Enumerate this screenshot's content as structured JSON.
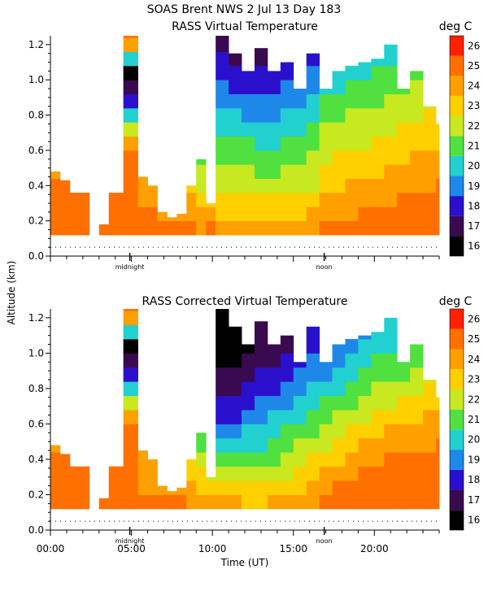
{
  "header": {
    "title": "SOAS Brent NWS    2 Jul 13 Day 183"
  },
  "y_axis_shared_label": "Altitude (km)",
  "chart_data": [
    {
      "type": "heatmap",
      "title": "RASS Virtual Temperature",
      "unit_label": "deg C",
      "ylabel": "Altitude (km)",
      "yticks": [
        "0.0",
        "0.2",
        "0.4",
        "0.6",
        "0.8",
        "1.0",
        "1.2"
      ],
      "ylim": [
        0,
        1.25
      ],
      "xlim": [
        0,
        24
      ],
      "markers": [
        {
          "label": "midnight",
          "x": 4.9
        },
        {
          "label": "noon",
          "x": 16.9
        }
      ],
      "colorbar": {
        "labels": [
          "16",
          "17",
          "18",
          "19",
          "20",
          "21",
          "22",
          "23",
          "24",
          "25",
          "26"
        ],
        "colors": [
          "#000000",
          "#3a0a50",
          "#2a10cc",
          "#1e88e8",
          "#22d0d0",
          "#50e040",
          "#c8e820",
          "#ffd000",
          "#ffa000",
          "#ff7000",
          "#ff2000"
        ]
      },
      "profiles": [
        {
          "x": 0.0,
          "top": 0.48,
          "vals": [
            25.5,
            25.5,
            25.3,
            25.0,
            24.8
          ]
        },
        {
          "x": 0.6,
          "top": 0.43,
          "vals": [
            25.5,
            25.4,
            25.2,
            25.0
          ]
        },
        {
          "x": 1.2,
          "top": 0.38,
          "vals": [
            25.5,
            25.3,
            25.0
          ]
        },
        {
          "x": 1.8,
          "top": 0.41,
          "vals": [
            25.5,
            25.3,
            25.0
          ]
        },
        {
          "x": 2.4,
          "top": 0.0,
          "vals": []
        },
        {
          "x": 3.0,
          "top": 0.18,
          "vals": [
            25.5
          ]
        },
        {
          "x": 3.6,
          "top": 0.4,
          "vals": [
            25.5,
            25.4,
            25.2
          ]
        },
        {
          "x": 4.5,
          "top": 1.25,
          "vals": [
            25.5,
            25.4,
            25.3,
            25.6,
            25.5,
            25.6,
            24.0,
            22.0,
            20.0,
            18.0,
            17.0,
            16.0,
            20.0,
            24.0,
            25.0,
            25.0
          ]
        },
        {
          "x": 5.4,
          "top": 0.45,
          "vals": [
            25.5,
            25.2,
            24.8,
            24.5,
            24.3
          ]
        },
        {
          "x": 6.0,
          "top": 0.4,
          "vals": [
            25.4,
            25.0,
            24.6,
            24.4
          ]
        },
        {
          "x": 6.6,
          "top": 0.25,
          "vals": [
            25.3,
            24.8,
            24.5
          ]
        },
        {
          "x": 7.2,
          "top": 0.22,
          "vals": [
            25.2,
            24.6
          ]
        },
        {
          "x": 7.8,
          "top": 0.24,
          "vals": [
            25.2,
            24.7
          ]
        },
        {
          "x": 8.4,
          "top": 0.4,
          "vals": [
            25.0,
            24.5,
            24.0,
            23.5
          ]
        },
        {
          "x": 9.0,
          "top": 0.55,
          "vals": [
            24.8,
            24.2,
            23.5,
            22.8,
            22.0,
            21.5
          ]
        },
        {
          "x": 9.6,
          "top": 0.3,
          "vals": [
            25.0,
            24.0,
            23.0
          ]
        },
        {
          "x": 10.2,
          "top": 1.25,
          "vals": [
            24.5,
            23.8,
            23.0,
            22.5,
            22.0,
            21.5,
            21.0,
            20.5,
            20.0,
            19.5,
            19.0,
            18.5,
            18.0,
            17.5,
            17.0,
            17.0
          ]
        },
        {
          "x": 11.0,
          "top": 1.15,
          "vals": [
            24.5,
            23.8,
            23.0,
            22.5,
            22.0,
            21.5,
            21.0,
            20.5,
            20.0,
            19.2,
            18.6,
            18.0,
            17.5,
            17.2,
            17.0
          ]
        },
        {
          "x": 11.8,
          "top": 1.05,
          "vals": [
            24.3,
            23.6,
            23.0,
            22.4,
            22.0,
            21.5,
            21.0,
            20.4,
            19.8,
            19.0,
            18.5,
            18.0,
            17.5
          ]
        },
        {
          "x": 12.6,
          "top": 1.18,
          "vals": [
            24.3,
            23.6,
            23.0,
            22.4,
            21.8,
            21.2,
            20.6,
            20.0,
            19.4,
            19.0,
            18.5,
            18.0,
            17.6,
            17.2,
            17.0
          ]
        },
        {
          "x": 13.4,
          "top": 1.05,
          "vals": [
            24.2,
            23.6,
            23.0,
            22.4,
            21.8,
            21.2,
            20.6,
            20.0,
            19.5,
            19.2,
            18.8,
            18.4,
            18.0
          ]
        },
        {
          "x": 14.2,
          "top": 1.1,
          "vals": [
            24.2,
            23.6,
            23.0,
            22.5,
            22.0,
            21.5,
            21.0,
            20.5,
            20.0,
            19.6,
            19.2,
            18.8,
            18.4,
            18.0
          ]
        },
        {
          "x": 15.0,
          "top": 0.95,
          "vals": [
            24.5,
            23.8,
            23.2,
            22.6,
            22.2,
            21.8,
            21.4,
            20.8,
            20.2,
            19.6,
            19.2,
            18.8
          ]
        },
        {
          "x": 15.8,
          "top": 1.15,
          "vals": [
            24.8,
            24.0,
            23.4,
            22.8,
            22.4,
            22.0,
            21.6,
            21.2,
            20.6,
            20.0,
            19.6,
            19.2,
            18.8,
            18.4
          ]
        },
        {
          "x": 16.6,
          "top": 0.95,
          "vals": [
            25.0,
            24.6,
            24.2,
            23.8,
            23.3,
            22.8,
            22.4,
            22.0,
            21.6,
            21.0,
            20.5,
            20.0
          ]
        },
        {
          "x": 17.4,
          "top": 1.05,
          "vals": [
            25.3,
            24.8,
            24.3,
            23.8,
            23.4,
            23.0,
            22.6,
            22.2,
            21.8,
            21.2,
            20.6,
            20.2,
            19.8
          ]
        },
        {
          "x": 18.2,
          "top": 1.08,
          "vals": [
            25.4,
            24.9,
            24.4,
            24.0,
            23.6,
            23.2,
            22.8,
            22.4,
            22.0,
            21.6,
            21.0,
            20.5,
            20.0
          ]
        },
        {
          "x": 19.0,
          "top": 1.1,
          "vals": [
            25.4,
            25.0,
            24.5,
            24.0,
            23.6,
            23.2,
            22.8,
            22.4,
            22.0,
            21.6,
            21.2,
            20.8,
            20.4,
            20.0
          ]
        },
        {
          "x": 19.8,
          "top": 1.12,
          "vals": [
            25.5,
            25.1,
            24.6,
            24.2,
            23.8,
            23.4,
            23.0,
            22.6,
            22.2,
            21.8,
            21.4,
            21.0,
            20.6,
            20.2
          ]
        },
        {
          "x": 20.6,
          "top": 1.2,
          "vals": [
            25.5,
            25.2,
            24.8,
            24.4,
            24.0,
            23.6,
            23.2,
            22.8,
            22.4,
            22.0,
            21.6,
            21.2,
            20.8,
            20.4,
            20.0
          ]
        },
        {
          "x": 21.4,
          "top": 0.95,
          "vals": [
            25.6,
            25.3,
            25.0,
            24.6,
            24.2,
            23.8,
            23.4,
            23.0,
            22.6,
            22.2,
            21.8,
            21.4
          ]
        },
        {
          "x": 22.2,
          "top": 1.05,
          "vals": [
            25.6,
            25.4,
            25.1,
            24.8,
            24.4,
            24.0,
            23.6,
            23.2,
            22.8,
            22.4,
            22.0,
            21.6,
            21.2
          ]
        },
        {
          "x": 23.0,
          "top": 0.85,
          "vals": [
            25.7,
            25.5,
            25.2,
            24.9,
            24.6,
            24.2,
            23.8,
            23.4,
            23.0,
            22.6
          ]
        },
        {
          "x": 23.8,
          "top": 0.75,
          "vals": [
            25.8,
            25.6,
            25.3,
            25.0,
            24.6,
            24.2,
            23.8,
            23.4,
            23.0
          ]
        }
      ]
    },
    {
      "type": "heatmap",
      "title": "RASS Corrected Virtual Temperature",
      "unit_label": "deg C",
      "ylabel": "Altitude (km)",
      "xlabel": "Time (UT)",
      "xticks": [
        "00:00",
        "05:00",
        "10:00",
        "15:00",
        "20:00"
      ],
      "yticks": [
        "0.0",
        "0.2",
        "0.4",
        "0.6",
        "0.8",
        "1.0",
        "1.2"
      ],
      "ylim": [
        0,
        1.25
      ],
      "xlim": [
        0,
        24
      ],
      "markers": [
        {
          "label": "midnight",
          "x": 4.9
        },
        {
          "label": "noon",
          "x": 16.9
        }
      ],
      "colorbar": {
        "labels": [
          "16",
          "17",
          "18",
          "19",
          "20",
          "21",
          "22",
          "23",
          "24",
          "25",
          "26"
        ],
        "colors": [
          "#000000",
          "#3a0a50",
          "#2a10cc",
          "#1e88e8",
          "#22d0d0",
          "#50e040",
          "#c8e820",
          "#ffd000",
          "#ffa000",
          "#ff7000",
          "#ff2000"
        ]
      },
      "profiles": [
        {
          "x": 0.0,
          "top": 0.48,
          "vals": [
            25.5,
            25.5,
            25.3,
            25.0,
            24.8
          ]
        },
        {
          "x": 0.6,
          "top": 0.43,
          "vals": [
            25.5,
            25.4,
            25.2,
            25.0
          ]
        },
        {
          "x": 1.2,
          "top": 0.38,
          "vals": [
            25.5,
            25.3,
            25.0
          ]
        },
        {
          "x": 1.8,
          "top": 0.41,
          "vals": [
            25.5,
            25.3,
            25.0
          ]
        },
        {
          "x": 2.4,
          "top": 0.0,
          "vals": []
        },
        {
          "x": 3.0,
          "top": 0.18,
          "vals": [
            25.5
          ]
        },
        {
          "x": 3.6,
          "top": 0.4,
          "vals": [
            25.5,
            25.4,
            25.2
          ]
        },
        {
          "x": 4.5,
          "top": 1.25,
          "vals": [
            25.5,
            25.4,
            25.3,
            25.6,
            25.5,
            25.6,
            24.0,
            22.0,
            20.0,
            18.0,
            17.0,
            16.0,
            20.0,
            24.0,
            25.0,
            25.0
          ]
        },
        {
          "x": 5.4,
          "top": 0.45,
          "vals": [
            25.3,
            24.9,
            24.5,
            24.2,
            24.0
          ]
        },
        {
          "x": 6.0,
          "top": 0.4,
          "vals": [
            25.2,
            24.8,
            24.4,
            24.1
          ]
        },
        {
          "x": 6.6,
          "top": 0.25,
          "vals": [
            25.1,
            24.6,
            24.2
          ]
        },
        {
          "x": 7.2,
          "top": 0.22,
          "vals": [
            25.0,
            24.4
          ]
        },
        {
          "x": 7.8,
          "top": 0.24,
          "vals": [
            25.0,
            24.5
          ]
        },
        {
          "x": 8.4,
          "top": 0.4,
          "vals": [
            24.8,
            24.2,
            23.6,
            23.0
          ]
        },
        {
          "x": 9.0,
          "top": 0.55,
          "vals": [
            24.5,
            23.8,
            23.0,
            22.2,
            21.5,
            21.0
          ]
        },
        {
          "x": 9.6,
          "top": 0.3,
          "vals": [
            24.6,
            23.6,
            22.6
          ]
        },
        {
          "x": 10.2,
          "top": 1.25,
          "vals": [
            24.0,
            23.0,
            22.0,
            21.0,
            20.0,
            19.0,
            18.5,
            18.0,
            17.5,
            17.0,
            16.8,
            16.5,
            16.5,
            16.5,
            16.8,
            17.0
          ]
        },
        {
          "x": 11.0,
          "top": 1.15,
          "vals": [
            24.0,
            23.0,
            22.0,
            21.0,
            20.2,
            19.4,
            18.8,
            18.2,
            17.6,
            17.0,
            16.5,
            16.2,
            16.5,
            16.8,
            17.0
          ]
        },
        {
          "x": 11.8,
          "top": 1.05,
          "vals": [
            23.8,
            23.0,
            22.2,
            21.4,
            20.6,
            20.0,
            19.4,
            18.8,
            18.2,
            17.6,
            17.2,
            16.8,
            17.0
          ]
        },
        {
          "x": 12.6,
          "top": 1.18,
          "vals": [
            23.8,
            23.0,
            22.2,
            21.5,
            20.8,
            20.2,
            19.6,
            19.0,
            18.5,
            18.0,
            17.5,
            17.2,
            17.0,
            17.2,
            17.5
          ]
        },
        {
          "x": 13.4,
          "top": 1.05,
          "vals": [
            24.0,
            23.2,
            22.5,
            21.8,
            21.2,
            20.6,
            20.0,
            19.4,
            18.8,
            18.2,
            17.6,
            17.2,
            17.0
          ]
        },
        {
          "x": 14.2,
          "top": 1.1,
          "vals": [
            24.0,
            23.4,
            22.8,
            22.2,
            21.6,
            21.0,
            20.4,
            19.8,
            19.2,
            18.6,
            18.2,
            17.8,
            17.6,
            17.4
          ]
        },
        {
          "x": 15.0,
          "top": 0.95,
          "vals": [
            24.4,
            23.8,
            23.2,
            22.6,
            22.0,
            21.4,
            20.8,
            20.2,
            19.6,
            19.0,
            18.6,
            18.2
          ]
        },
        {
          "x": 15.8,
          "top": 1.15,
          "vals": [
            24.8,
            24.2,
            23.6,
            23.0,
            22.4,
            21.8,
            21.2,
            20.6,
            20.0,
            19.4,
            19.0,
            18.6,
            18.4,
            18.2
          ]
        },
        {
          "x": 16.6,
          "top": 0.95,
          "vals": [
            25.2,
            24.6,
            24.0,
            23.4,
            22.8,
            22.2,
            21.6,
            21.0,
            20.4,
            19.8,
            19.4,
            19.0
          ]
        },
        {
          "x": 17.4,
          "top": 1.05,
          "vals": [
            25.5,
            25.0,
            24.4,
            23.8,
            23.2,
            22.6,
            22.0,
            21.4,
            20.8,
            20.2,
            19.8,
            19.4,
            19.0
          ]
        },
        {
          "x": 18.2,
          "top": 1.08,
          "vals": [
            25.6,
            25.2,
            24.8,
            24.2,
            23.6,
            23.0,
            22.4,
            21.8,
            21.2,
            20.6,
            20.2,
            19.8,
            19.4
          ]
        },
        {
          "x": 19.0,
          "top": 1.1,
          "vals": [
            25.7,
            25.4,
            25.0,
            24.6,
            24.0,
            23.4,
            22.8,
            22.2,
            21.6,
            21.0,
            20.6,
            20.2,
            19.8,
            19.4
          ]
        },
        {
          "x": 19.8,
          "top": 1.12,
          "vals": [
            25.7,
            25.5,
            25.2,
            24.8,
            24.3,
            23.8,
            23.2,
            22.6,
            22.0,
            21.4,
            21.0,
            20.6,
            20.2,
            19.8
          ]
        },
        {
          "x": 20.6,
          "top": 1.2,
          "vals": [
            25.8,
            25.6,
            25.3,
            25.0,
            24.6,
            24.0,
            23.4,
            22.8,
            22.2,
            21.6,
            21.2,
            20.8,
            20.4,
            20.0,
            19.6
          ]
        },
        {
          "x": 21.4,
          "top": 0.95,
          "vals": [
            25.8,
            25.6,
            25.4,
            25.1,
            24.7,
            24.2,
            23.6,
            23.0,
            22.4,
            21.8,
            21.4,
            21.0
          ]
        },
        {
          "x": 22.2,
          "top": 1.05,
          "vals": [
            25.8,
            25.7,
            25.5,
            25.2,
            24.8,
            24.3,
            23.8,
            23.2,
            22.6,
            22.0,
            21.6,
            21.2,
            20.8
          ]
        },
        {
          "x": 23.0,
          "top": 0.85,
          "vals": [
            25.9,
            25.7,
            25.5,
            25.2,
            24.8,
            24.4,
            24.0,
            23.6,
            23.2,
            22.8
          ]
        },
        {
          "x": 23.8,
          "top": 0.75,
          "vals": [
            25.9,
            25.8,
            25.6,
            25.3,
            25.0,
            24.6,
            24.2,
            23.8,
            23.4
          ]
        }
      ]
    }
  ]
}
